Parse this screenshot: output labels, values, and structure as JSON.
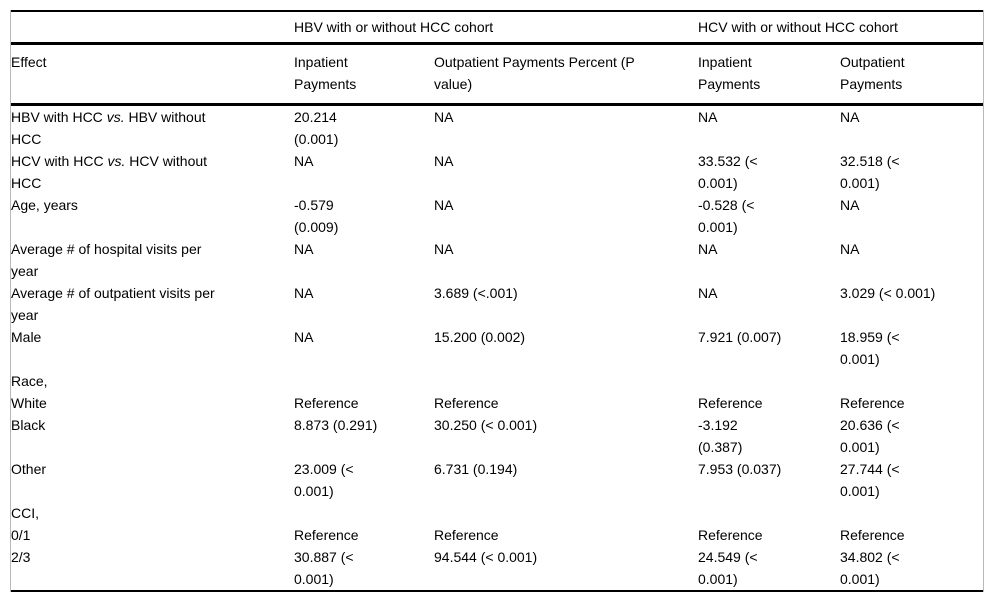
{
  "table": {
    "group_headers": {
      "effect_spacer": "",
      "hbv": "HBV with or without HCC cohort",
      "hcv": "HCV with or without HCC cohort"
    },
    "columns": [
      "Effect",
      "Inpatient\nPayments",
      "Outpatient Payments Percent (P\nvalue)",
      "Inpatient\nPayments",
      "Outpatient\nPayments"
    ],
    "rows": [
      {
        "effect": "HBV with HCC vs. HBV without\nHCC",
        "italic_vs": true,
        "cells": [
          "20.214\n(0.001)",
          "NA",
          "NA",
          "NA"
        ]
      },
      {
        "effect": "HCV with HCC vs. HCV without\nHCC",
        "italic_vs": true,
        "cells": [
          "NA",
          "NA",
          "33.532 (<\n0.001)",
          "32.518 (<\n0.001)"
        ]
      },
      {
        "effect": "Age, years",
        "italic_vs": false,
        "cells": [
          "-0.579\n(0.009)",
          "NA",
          "-0.528 (<\n0.001)",
          "NA"
        ]
      },
      {
        "effect": "Average # of hospital visits per\nyear",
        "italic_vs": false,
        "cells": [
          "NA",
          "NA",
          "NA",
          "NA"
        ]
      },
      {
        "effect": "Average # of outpatient visits per\nyear",
        "italic_vs": false,
        "cells": [
          "NA",
          "3.689 (<.001)",
          "NA",
          "3.029 (< 0.001)"
        ]
      },
      {
        "effect": "Male",
        "italic_vs": false,
        "cells": [
          "NA",
          "15.200 (0.002)",
          "7.921 (0.007)",
          "18.959 (<\n0.001)"
        ]
      },
      {
        "effect": "Race,",
        "italic_vs": false,
        "cells": [
          "",
          "",
          "",
          ""
        ]
      },
      {
        "effect": "White",
        "italic_vs": false,
        "cells": [
          "Reference",
          "Reference",
          "Reference",
          "Reference"
        ]
      },
      {
        "effect": "Black",
        "italic_vs": false,
        "cells": [
          "8.873 (0.291)",
          "30.250 (< 0.001)",
          "-3.192\n(0.387)",
          "20.636 (<\n0.001)"
        ]
      },
      {
        "effect": "Other",
        "italic_vs": false,
        "cells": [
          "23.009 (<\n0.001)",
          "6.731 (0.194)",
          "7.953 (0.037)",
          "27.744 (<\n0.001)"
        ]
      },
      {
        "effect": "CCI,",
        "italic_vs": false,
        "cells": [
          "",
          "",
          "",
          ""
        ]
      },
      {
        "effect": "0/1",
        "italic_vs": false,
        "cells": [
          "Reference",
          "Reference",
          "Reference",
          "Reference"
        ]
      },
      {
        "effect": "2/3",
        "italic_vs": false,
        "cells": [
          "30.887 (<\n0.001)",
          "94.544 (< 0.001)",
          "24.549 (<\n0.001)",
          "34.802 (<\n0.001)"
        ]
      }
    ]
  },
  "colors": {
    "rule": "#000000",
    "side_border": "#b9b9b9",
    "text": "#000000",
    "background": "#ffffff"
  }
}
